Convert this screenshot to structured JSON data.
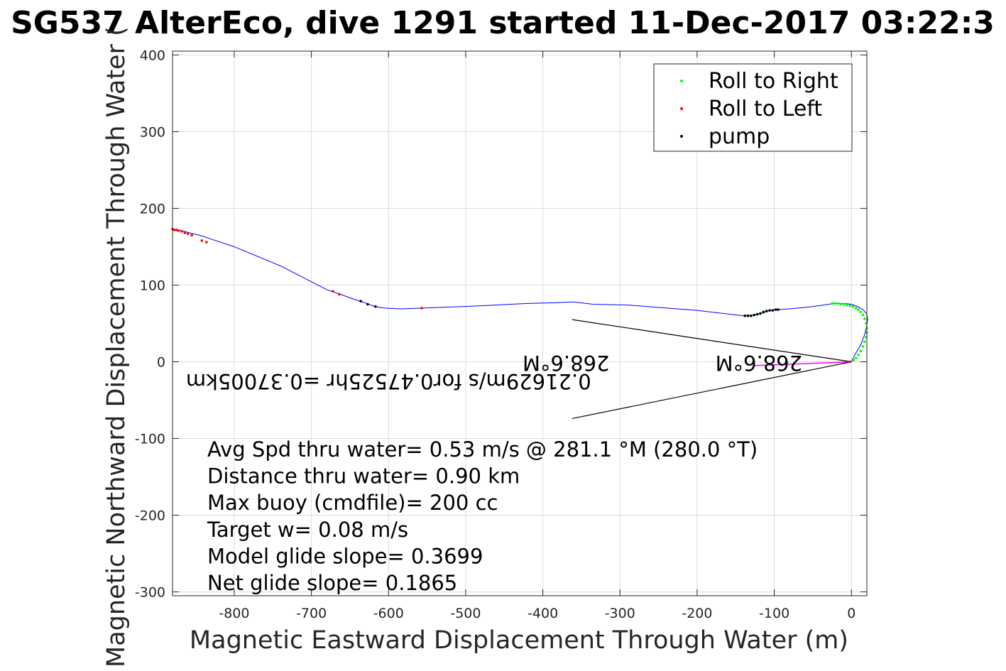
{
  "chart_data": {
    "type": "line",
    "title": "SG537 AlterEco, dive 1291 started 11-Dec-2017 03:22:3",
    "xlabel": "Magnetic Eastward Displacement Through Water (m)",
    "ylabel": "Magnetic Northward Displacement Through Water (",
    "xlim": [
      -880,
      20
    ],
    "ylim": [
      -305,
      405
    ],
    "xticks": [
      -800,
      -700,
      -600,
      -500,
      -400,
      -300,
      -200,
      -100,
      0
    ],
    "yticks": [
      -300,
      -200,
      -100,
      0,
      100,
      200,
      300,
      400
    ],
    "grid": true,
    "legend_position": "top-right",
    "legend": [
      {
        "name": "Roll to Right",
        "color": "#00ff00"
      },
      {
        "name": "Roll to Left",
        "color": "#ff0000"
      },
      {
        "name": "pump",
        "color": "#000000"
      }
    ],
    "track": {
      "color": "#0000ff",
      "x": [
        0,
        5,
        12,
        17,
        20,
        21,
        20,
        15,
        8,
        0,
        -10,
        -22,
        -50,
        -80,
        -95,
        -105,
        -112,
        -118,
        -125,
        -132,
        -140,
        -200,
        -290,
        -335,
        -360,
        -385,
        -420,
        -480,
        -555,
        -585,
        -605,
        -618,
        -628,
        -640,
        -660,
        -680,
        -740,
        -800,
        -830,
        -845,
        -858,
        -868,
        -876,
        -880
      ],
      "y": [
        0,
        10,
        22,
        35,
        48,
        55,
        62,
        68,
        72,
        75,
        76,
        76,
        72,
        69,
        68,
        67,
        65,
        63,
        61,
        60,
        60,
        67,
        74,
        75,
        78,
        77,
        76,
        73,
        70,
        69,
        70,
        72,
        76,
        80,
        87,
        94,
        125,
        150,
        160,
        165,
        168,
        171,
        172,
        173
      ]
    },
    "roll_right": {
      "color": "#00ff00",
      "x": [
        -25,
        -22,
        -18,
        -14,
        -10,
        -6,
        -2,
        2,
        6,
        9,
        12,
        15,
        17,
        19,
        20,
        20,
        19,
        17,
        15,
        12,
        9,
        6,
        3,
        -122,
        -118,
        -114,
        -110
      ],
      "y": [
        76,
        76,
        76,
        75,
        75,
        74,
        73,
        72,
        70,
        68,
        65,
        61,
        56,
        50,
        44,
        38,
        32,
        26,
        20,
        14,
        9,
        5,
        2,
        62,
        63,
        64,
        66
      ]
    },
    "roll_left": {
      "color": "#ff0000",
      "x": [
        -2,
        -880,
        -878,
        -875,
        -872,
        -868,
        -864,
        -860,
        -855,
        -842,
        -836,
        -672,
        -664,
        -557
      ],
      "y": [
        0,
        173,
        172,
        172,
        171,
        170,
        168,
        167,
        165,
        158,
        156,
        92,
        88,
        70
      ]
    },
    "pump": {
      "color": "#000000",
      "x": [
        -138,
        -134,
        -130,
        -126,
        -122,
        -118,
        -114,
        -110,
        -106,
        -102,
        -98,
        -95,
        -636,
        -627,
        -617
      ],
      "y": [
        60,
        60,
        60,
        61,
        62,
        63,
        65,
        66,
        67,
        67,
        68,
        68,
        79,
        75,
        72
      ]
    },
    "heading_wedge": {
      "color": "#000000",
      "origin": [
        0,
        0
      ],
      "upper_end": [
        -362,
        55
      ],
      "lower_end": [
        -362,
        -74
      ]
    },
    "mean_current_line": {
      "color": "#ff00ff",
      "x": [
        0,
        -125
      ],
      "y": [
        0,
        -5
      ]
    },
    "flipped_labels": [
      {
        "text": "268.6°M",
        "x": -120,
        "y": 8
      },
      {
        "text": "268.6°M",
        "x": -370,
        "y": 8
      },
      {
        "text": "0.21629m/s for0.47525hr =0.37005km",
        "x": -600,
        "y": -16
      }
    ],
    "annotations": [
      "Avg Spd thru water=  0.53 m/s @ 281.1 °M (280.0 °T)",
      "Distance thru water=  0.90 km",
      "Max buoy (cmdfile)= 200 cc",
      "Target w= 0.08 m/s",
      "Model glide slope= 0.3699",
      "Net glide slope= 0.1865"
    ]
  }
}
